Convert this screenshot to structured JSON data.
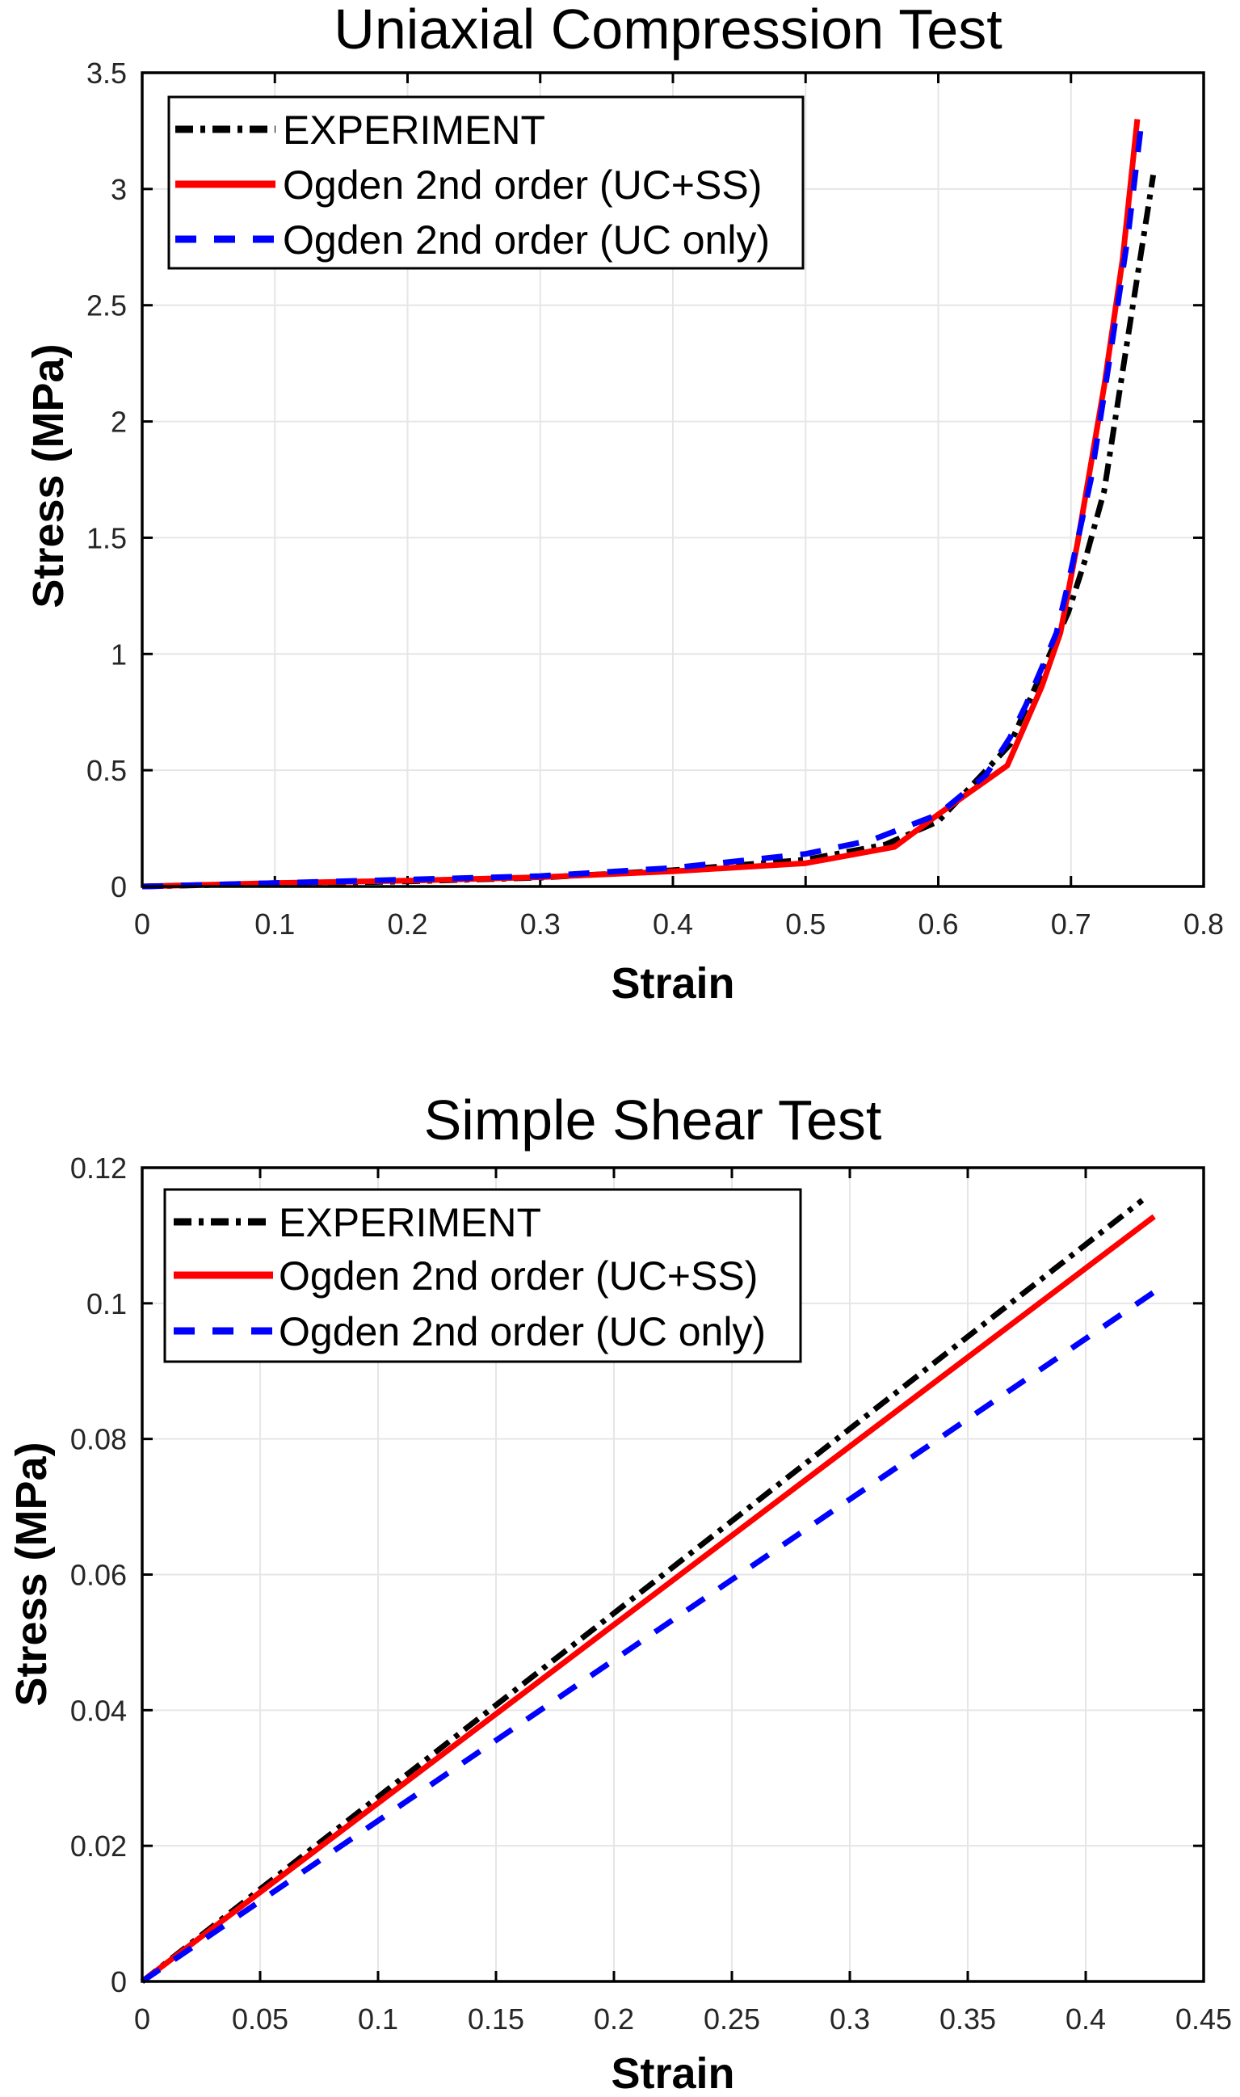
{
  "chart_data": [
    {
      "type": "line",
      "title": "Uniaxial Compression Test",
      "xlabel": "Strain",
      "ylabel": "Stress (MPa)",
      "xlim": [
        0,
        0.8
      ],
      "ylim": [
        0,
        3.5
      ],
      "xticks": [
        "0",
        "0.1",
        "0.2",
        "0.3",
        "0.4",
        "0.5",
        "0.6",
        "0.7",
        "0.8"
      ],
      "yticks": [
        "0",
        "0.5",
        "1",
        "1.5",
        "2",
        "2.5",
        "3",
        "3.5"
      ],
      "grid": true,
      "legend": "top-left",
      "series": [
        {
          "name": "EXPERIMENT",
          "color": "#000000",
          "style": "dash-dot",
          "points": [
            [
              0,
              0
            ],
            [
              0.1,
              0.012
            ],
            [
              0.2,
              0.022
            ],
            [
              0.3,
              0.038
            ],
            [
              0.4,
              0.07
            ],
            [
              0.5,
              0.115
            ],
            [
              0.56,
              0.18
            ],
            [
              0.6,
              0.28
            ],
            [
              0.654,
              0.61
            ],
            [
              0.698,
              1.18
            ],
            [
              0.711,
              1.41
            ],
            [
              0.725,
              1.7
            ],
            [
              0.745,
              2.44
            ],
            [
              0.762,
              3.06
            ]
          ]
        },
        {
          "name": "Ogden 2nd order (UC+SS)",
          "color": "#ff0000",
          "style": "solid",
          "points": [
            [
              0,
              0
            ],
            [
              0.1,
              0.015
            ],
            [
              0.2,
              0.025
            ],
            [
              0.3,
              0.04
            ],
            [
              0.4,
              0.065
            ],
            [
              0.5,
              0.1
            ],
            [
              0.567,
              0.17
            ],
            [
              0.6,
              0.31
            ],
            [
              0.652,
              0.52
            ],
            [
              0.678,
              0.86
            ],
            [
              0.692,
              1.09
            ],
            [
              0.705,
              1.48
            ],
            [
              0.725,
              2.15
            ],
            [
              0.739,
              2.7
            ],
            [
              0.75,
              3.3
            ]
          ]
        },
        {
          "name": "Ogden 2nd order (UC only)",
          "color": "#0000ff",
          "style": "dashed",
          "points": [
            [
              0,
              0
            ],
            [
              0.1,
              0.015
            ],
            [
              0.2,
              0.03
            ],
            [
              0.3,
              0.045
            ],
            [
              0.4,
              0.08
            ],
            [
              0.45,
              0.11
            ],
            [
              0.5,
              0.14
            ],
            [
              0.55,
              0.2
            ],
            [
              0.6,
              0.31
            ],
            [
              0.636,
              0.48
            ],
            [
              0.654,
              0.64
            ],
            [
              0.666,
              0.78
            ],
            [
              0.678,
              0.94
            ],
            [
              0.689,
              1.09
            ],
            [
              0.697,
              1.28
            ],
            [
              0.715,
              1.75
            ],
            [
              0.73,
              2.3
            ],
            [
              0.743,
              2.8
            ],
            [
              0.753,
              3.28
            ]
          ]
        }
      ]
    },
    {
      "type": "line",
      "title": "Simple Shear Test",
      "xlabel": "Strain",
      "ylabel": "Stress (MPa)",
      "xlim": [
        0,
        0.45
      ],
      "ylim": [
        0,
        0.12
      ],
      "xticks": [
        "0",
        "0.05",
        "0.1",
        "0.15",
        "0.2",
        "0.25",
        "0.3",
        "0.35",
        "0.4",
        "0.45"
      ],
      "yticks": [
        "0",
        "0.02",
        "0.04",
        "0.06",
        "0.08",
        "0.1",
        "0.12"
      ],
      "grid": true,
      "legend": "top-left",
      "series": [
        {
          "name": "EXPERIMENT",
          "color": "#000000",
          "style": "dash-dot",
          "points": [
            [
              0,
              0
            ],
            [
              0.1,
              0.0272
            ],
            [
              0.2,
              0.0543
            ],
            [
              0.3,
              0.0815
            ],
            [
              0.424,
              0.1152
            ]
          ]
        },
        {
          "name": "Ogden 2nd order (UC+SS)",
          "color": "#ff0000",
          "style": "solid",
          "points": [
            [
              0,
              0
            ],
            [
              0.1,
              0.0263
            ],
            [
              0.2,
              0.0526
            ],
            [
              0.3,
              0.0789
            ],
            [
              0.429,
              0.1128
            ]
          ]
        },
        {
          "name": "Ogden 2nd order (UC only)",
          "color": "#0000ff",
          "style": "dashed",
          "points": [
            [
              0,
              0
            ],
            [
              0.1,
              0.0237
            ],
            [
              0.2,
              0.0474
            ],
            [
              0.3,
              0.0711
            ],
            [
              0.43,
              0.1019
            ]
          ]
        }
      ]
    }
  ]
}
